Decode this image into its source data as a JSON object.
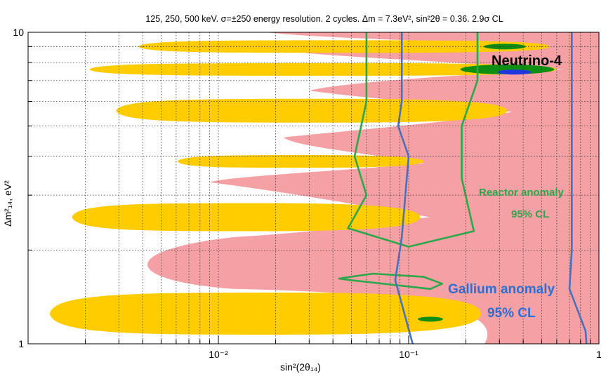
{
  "chart_data": {
    "type": "contour",
    "title": "125, 250, 500 keV. σ=±250 energy resolution. 2 cycles. Δm = 7.3eV², sin²2θ = 0.36. 2.9σ CL",
    "xlabel": "sin²(2θ₁₄)",
    "ylabel": "Δm²₁₄, eV²",
    "x_scale": "log",
    "y_scale": "log",
    "xlim": [
      0.001,
      1
    ],
    "ylim": [
      1,
      10
    ],
    "x_ticks": [
      {
        "value": 0.01,
        "label": "10⁻²"
      },
      {
        "value": 0.1,
        "label": "10⁻¹"
      },
      {
        "value": 1,
        "label": "1"
      }
    ],
    "y_ticks": [
      {
        "value": 1,
        "label": "1"
      },
      {
        "value": 10,
        "label": "10"
      }
    ],
    "grid": true,
    "best_fit": {
      "dm2": 7.3,
      "sin2_2theta": 0.36
    },
    "regions": [
      {
        "name": "Excluded region",
        "color": "#f5a0a5"
      },
      {
        "name": "Allowed region",
        "color": "#ffcc00"
      },
      {
        "name": "Allowed region (higher CL)",
        "color": "#0f8f12"
      },
      {
        "name": "Best fit",
        "color": "#1f35e0"
      }
    ],
    "lobes": [
      {
        "dm2": 1.25,
        "sin2_min": 0.0013,
        "sin2_max": 0.24
      },
      {
        "dm2": 2.55,
        "sin2_min": 0.0017,
        "sin2_max": 0.115
      },
      {
        "dm2": 3.85,
        "sin2_min": 0.0061,
        "sin2_max": 0.12
      },
      {
        "dm2": 5.6,
        "sin2_min": 0.0029,
        "sin2_max": 0.33
      },
      {
        "dm2": 7.6,
        "sin2_min": 0.0021,
        "sin2_max": 0.6
      },
      {
        "dm2": 9.0,
        "sin2_min": 0.0038,
        "sin2_max": 0.55
      }
    ],
    "contours": [
      {
        "name": "Reactor anomaly 95% CL",
        "color": "#2aa84a",
        "points": [
          [
            0.05,
            1.6
          ],
          [
            0.08,
            1.55
          ],
          [
            0.13,
            1.5
          ],
          [
            0.15,
            1.56
          ],
          [
            0.12,
            1.64
          ],
          [
            0.065,
            1.68
          ],
          [
            0.043,
            1.62
          ],
          [
            0.05,
            1.6
          ]
        ]
      },
      {
        "name": "Reactor anomaly 95% CL",
        "color": "#2aa84a",
        "points": [
          [
            0.06,
            10
          ],
          [
            0.06,
            6
          ],
          [
            0.052,
            4
          ],
          [
            0.06,
            3
          ],
          [
            0.048,
            2.35
          ],
          [
            0.1,
            2.05
          ],
          [
            0.22,
            2.3
          ],
          [
            0.19,
            3.4
          ],
          [
            0.19,
            5
          ],
          [
            0.23,
            7
          ],
          [
            0.23,
            10
          ]
        ]
      },
      {
        "name": "Gallium anomaly 95% CL",
        "color": "#4a72b8",
        "points": [
          [
            0.092,
            10
          ],
          [
            0.092,
            6
          ],
          [
            0.088,
            5
          ],
          [
            0.1,
            4
          ],
          [
            0.092,
            2.2
          ],
          [
            0.085,
            1.6
          ],
          [
            0.105,
            1
          ]
        ]
      },
      {
        "name": "Gallium anomaly 95% CL",
        "color": "#4a72b8",
        "points": [
          [
            0.72,
            10
          ],
          [
            0.72,
            5
          ],
          [
            0.72,
            2
          ],
          [
            0.7,
            1.5
          ],
          [
            0.85,
            1.1
          ],
          [
            0.86,
            1
          ]
        ]
      }
    ],
    "annotations": [
      {
        "text": "Neutrino-4",
        "x": 0.36,
        "y": 7.9
      },
      {
        "text": "Reactor anomaly",
        "x": 0.2,
        "y": 2.9
      },
      {
        "text": "95% CL",
        "x": 0.27,
        "y": 2.5
      },
      {
        "text": "Gallium anomaly",
        "x": 0.16,
        "y": 1.55
      },
      {
        "text": "95% CL",
        "x": 0.2,
        "y": 1.3
      }
    ]
  }
}
